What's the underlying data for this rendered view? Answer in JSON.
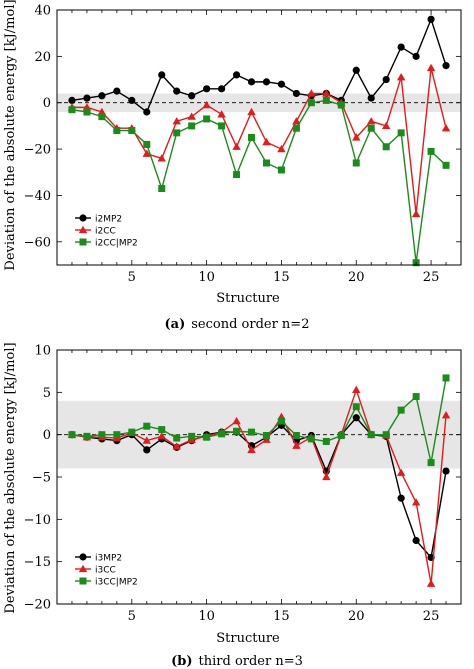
{
  "chart_data": [
    {
      "type": "line",
      "ylabel": "Deviation of the absolute energy [kJ/mol]",
      "xlabel": "Structure",
      "caption_tag": "(a)",
      "caption_text": "second order n=2",
      "xlim": [
        0,
        27
      ],
      "ylim": [
        -70,
        40
      ],
      "xticks": [
        5,
        10,
        15,
        20,
        25
      ],
      "yticks": [
        -60,
        -40,
        -20,
        0,
        20,
        40
      ],
      "band": [
        -4,
        4
      ],
      "reference_line": 0,
      "legend_position": "bottom-left",
      "x": [
        1,
        2,
        3,
        4,
        5,
        6,
        7,
        8,
        9,
        10,
        11,
        12,
        13,
        14,
        15,
        16,
        17,
        18,
        19,
        20,
        21,
        22,
        23,
        24,
        25,
        26
      ],
      "series": [
        {
          "name": "i2MP2",
          "color": "#000000",
          "marker": "circle",
          "values": [
            1,
            2,
            3,
            5,
            1,
            -4,
            12,
            5,
            3,
            6,
            6,
            12,
            9,
            9,
            8,
            4,
            3,
            4,
            1,
            14,
            2,
            10,
            24,
            20,
            36,
            16
          ]
        },
        {
          "name": "i2CC",
          "color": "#e41a1c",
          "marker": "triangle",
          "values": [
            -2,
            -2,
            -4,
            -11,
            -11,
            -22,
            -24,
            -8,
            -6,
            -1,
            -5,
            -19,
            -4,
            -17,
            -20,
            -8,
            4,
            4,
            0,
            -15,
            -8,
            -10,
            11,
            -48,
            15,
            -11
          ]
        },
        {
          "name": "i2CC|MP2",
          "color": "#1a8c1a",
          "marker": "square",
          "values": [
            -3,
            -4,
            -6,
            -12,
            -12,
            -18,
            -37,
            -13,
            -10,
            -7,
            -10,
            -31,
            -15,
            -26,
            -29,
            -11,
            0,
            1,
            -1,
            -26,
            -11,
            -19,
            -13,
            -69,
            -21,
            -27
          ]
        }
      ]
    },
    {
      "type": "line",
      "ylabel": "Deviation of the absolute energy [kJ/mol]",
      "xlabel": "Structure",
      "caption_tag": "(b)",
      "caption_text": "third order n=3",
      "xlim": [
        0,
        27
      ],
      "ylim": [
        -20,
        10
      ],
      "xticks": [
        5,
        10,
        15,
        20,
        25
      ],
      "yticks": [
        -20,
        -15,
        -10,
        -5,
        0,
        5,
        10
      ],
      "band": [
        -4,
        4
      ],
      "reference_line": 0,
      "legend_position": "bottom-left",
      "x": [
        1,
        2,
        3,
        4,
        5,
        6,
        7,
        8,
        9,
        10,
        11,
        12,
        13,
        14,
        15,
        16,
        17,
        18,
        19,
        20,
        21,
        22,
        23,
        24,
        25,
        26
      ],
      "series": [
        {
          "name": "i3MP2",
          "color": "#000000",
          "marker": "circle",
          "values": [
            0,
            -0.3,
            -0.5,
            -0.7,
            0,
            -1.8,
            -0.5,
            -1.5,
            -0.7,
            0,
            0.3,
            0.3,
            -1.3,
            -0.3,
            1.1,
            -0.7,
            -0.1,
            -4.3,
            0,
            2,
            0,
            -0.2,
            -7.5,
            -12.5,
            -14.5,
            -4.3
          ]
        },
        {
          "name": "i3CC",
          "color": "#e41a1c",
          "marker": "triangle",
          "values": [
            0,
            -0.3,
            -0.3,
            -0.4,
            0.2,
            -0.7,
            -0.2,
            -1.4,
            -0.6,
            -0.2,
            0.3,
            1.6,
            -1.8,
            -0.6,
            2.1,
            -1.3,
            -0.3,
            -5,
            0,
            5.3,
            0,
            -0.1,
            -4.5,
            -8,
            -17.6,
            2.3
          ]
        },
        {
          "name": "i3CC|MP2",
          "color": "#1a8c1a",
          "marker": "square",
          "values": [
            0,
            -0.2,
            0,
            0,
            0.3,
            1,
            0.6,
            -0.4,
            -0.2,
            -0.3,
            0.1,
            0.4,
            0.3,
            -0.1,
            1.6,
            -0.1,
            -0.5,
            -0.8,
            -0.1,
            3.3,
            0,
            0,
            2.9,
            4.5,
            -3.3,
            6.7
          ]
        }
      ]
    }
  ]
}
